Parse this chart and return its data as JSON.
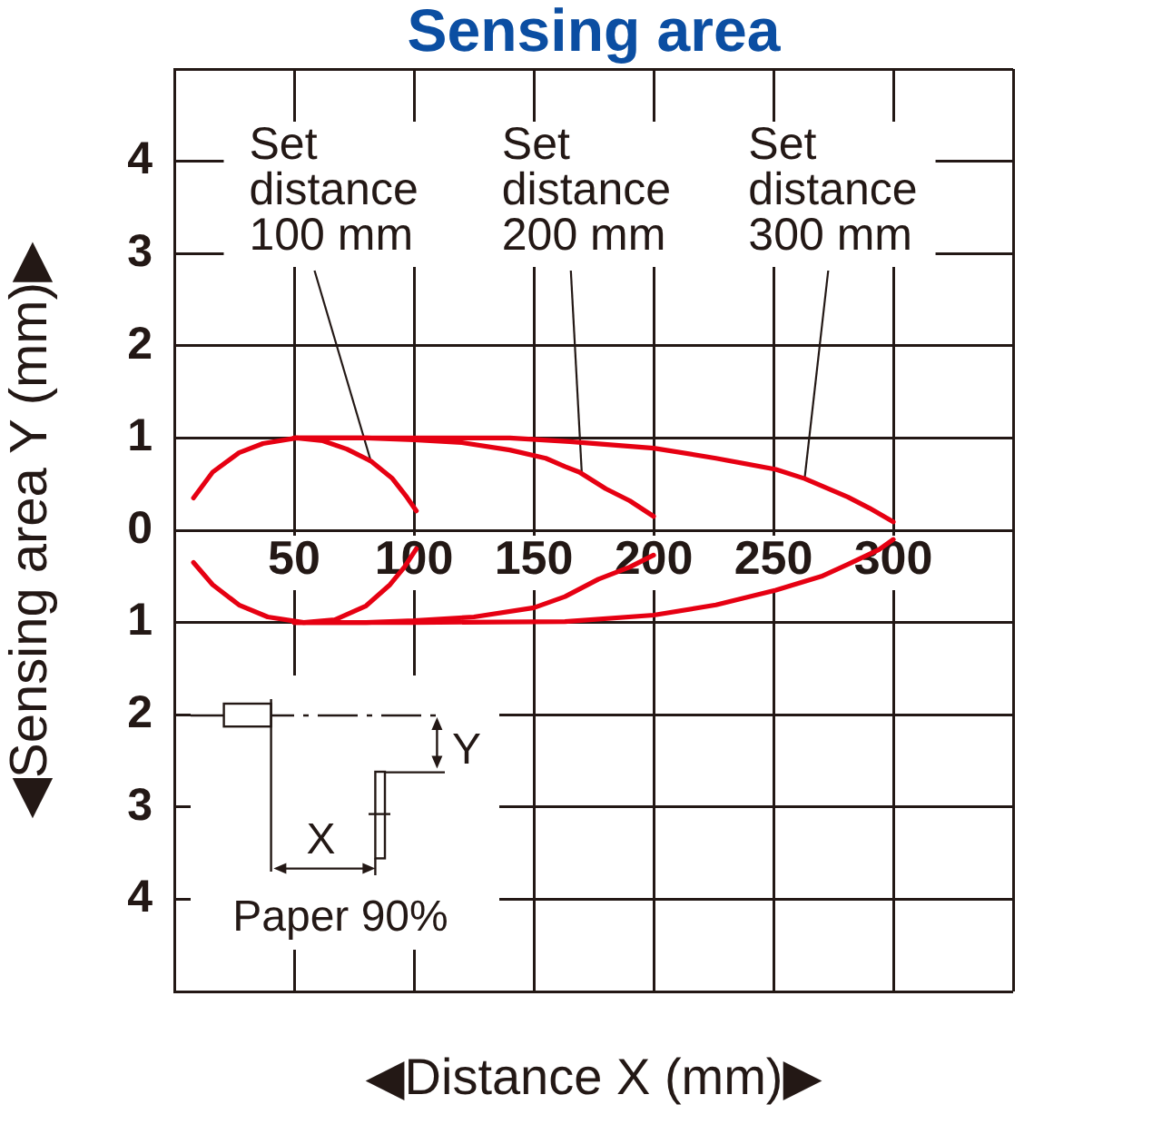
{
  "chart_data": {
    "type": "line",
    "title": "Sensing area",
    "xlabel": "◀Distance X (mm)▶",
    "ylabel": "◀Sensing area Y (mm)▶",
    "xlim": [
      0,
      350
    ],
    "ylim": [
      -5,
      5
    ],
    "xticks": [
      {
        "value": 0,
        "label": null
      },
      50,
      100,
      150,
      200,
      250,
      300,
      {
        "value": 350,
        "label": null
      }
    ],
    "yticks": [
      {
        "value": 5,
        "label": null
      },
      4,
      3,
      2,
      1,
      0,
      {
        "value": -1,
        "label": "1"
      },
      {
        "value": -2,
        "label": "2"
      },
      {
        "value": -3,
        "label": "3"
      },
      {
        "value": -4,
        "label": "4"
      },
      {
        "value": -5,
        "label": null
      }
    ],
    "grid": true,
    "legend": false,
    "marker": "none",
    "series": [
      {
        "color": "#e60012",
        "x": [
          8,
          16,
          27,
          37,
          51,
          62,
          72,
          82,
          91,
          97,
          101
        ],
        "values": [
          0.35,
          0.63,
          0.84,
          0.94,
          1.0,
          0.97,
          0.88,
          0.75,
          0.56,
          0.36,
          0.21
        ]
      },
      {
        "color": "#e60012",
        "x": [
          8,
          16,
          27,
          39,
          54,
          67,
          80,
          90,
          96,
          101
        ],
        "values": [
          -0.35,
          -0.59,
          -0.81,
          -0.94,
          -1.0,
          -0.97,
          -0.82,
          -0.59,
          -0.4,
          -0.2
        ]
      },
      {
        "color": "#e60012",
        "x": [
          50,
          80,
          100,
          120,
          140,
          155,
          163,
          169,
          180,
          190,
          200
        ],
        "values": [
          1.0,
          1.0,
          0.98,
          0.95,
          0.87,
          0.78,
          0.69,
          0.63,
          0.45,
          0.32,
          0.15
        ]
      },
      {
        "color": "#e60012",
        "x": [
          50,
          80,
          100,
          125,
          150,
          163,
          177,
          190,
          200
        ],
        "values": [
          -1.0,
          -1.0,
          -0.98,
          -0.94,
          -0.84,
          -0.72,
          -0.53,
          -0.4,
          -0.27
        ]
      },
      {
        "color": "#e60012",
        "x": [
          50,
          100,
          140,
          165,
          200,
          226,
          251,
          263,
          281,
          290,
          300
        ],
        "values": [
          1.0,
          1.0,
          1.0,
          0.96,
          0.89,
          0.78,
          0.66,
          0.56,
          0.36,
          0.24,
          0.09
        ]
      },
      {
        "color": "#e60012",
        "x": [
          50,
          100,
          163,
          200,
          226,
          251,
          270,
          281,
          294,
          300
        ],
        "values": [
          -1.0,
          -1.0,
          -0.99,
          -0.92,
          -0.81,
          -0.65,
          -0.5,
          -0.37,
          -0.21,
          -0.1
        ]
      }
    ],
    "annotations": [
      {
        "text": "Set\ndistance\n100 mm",
        "x": 82,
        "y": 0.75
      },
      {
        "text": "Set\ndistance\n200 mm",
        "x": 170,
        "y": 0.63
      },
      {
        "text": "Set\ndistance\n300 mm",
        "x": 263,
        "y": 0.56
      },
      "Y",
      "X",
      "Paper 90%"
    ]
  }
}
